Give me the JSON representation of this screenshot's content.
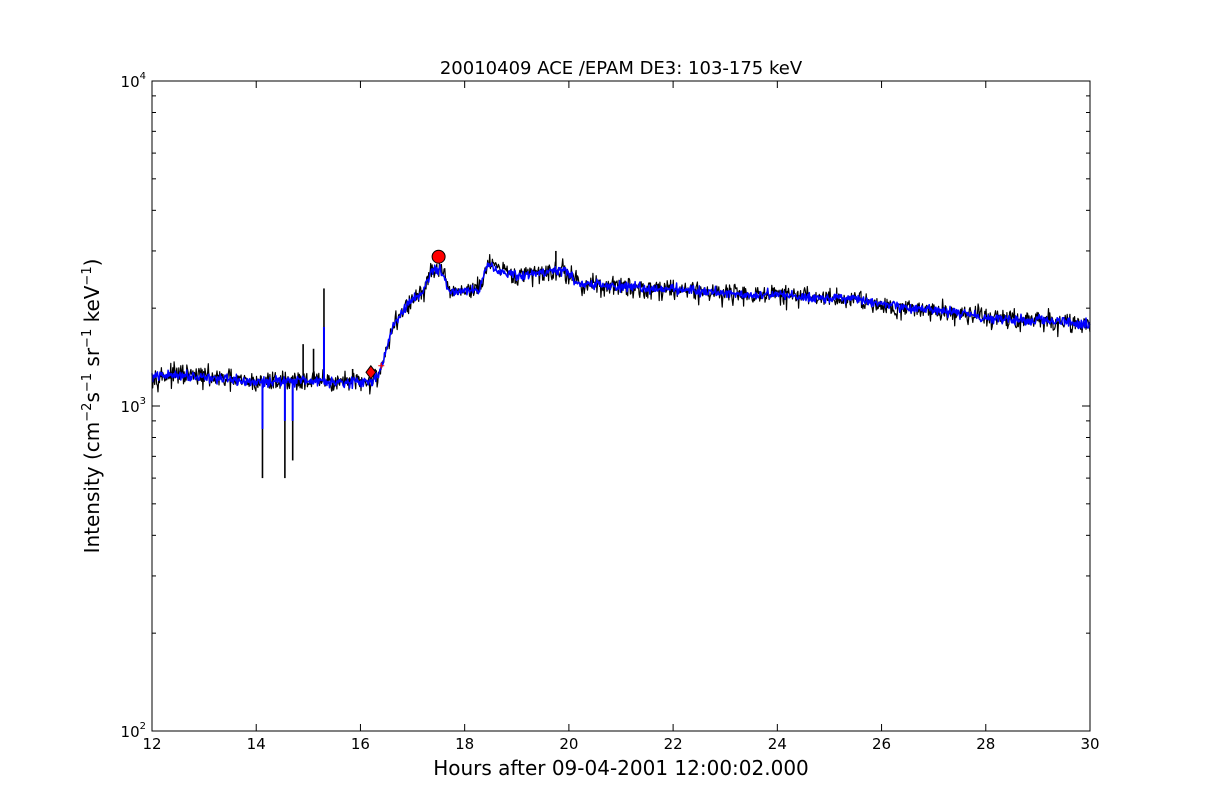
{
  "chart_data": {
    "type": "line",
    "title": "20010409 ACE /EPAM DE3: 103-175 keV",
    "xlabel": "Hours after 09-04-2001 12:00:02.000",
    "ylabel_parts": {
      "lead": "Intensity (cm",
      "exp1": "−2",
      "mid1": "s",
      "exp2": "−1",
      "mid2": " sr",
      "exp3": "−1",
      "mid3": " keV",
      "exp4": "−1",
      "tail": ")"
    },
    "xlim": [
      12,
      30
    ],
    "ylim": [
      100,
      10000
    ],
    "yscale": "log",
    "grid": false,
    "x_ticks": [
      12,
      14,
      16,
      18,
      20,
      22,
      24,
      26,
      28,
      30
    ],
    "y_ticks": [
      {
        "value": 100,
        "base": "10",
        "exp": "2"
      },
      {
        "value": 1000,
        "base": "10",
        "exp": "3"
      },
      {
        "value": 10000,
        "base": "10",
        "exp": "4"
      }
    ],
    "series": [
      {
        "color": "#000000",
        "noise": 0.045,
        "x": [
          12.0,
          12.5,
          13.0,
          13.5,
          14.0,
          14.5,
          15.0,
          15.5,
          16.0,
          16.2,
          16.35,
          16.5,
          16.65,
          16.8,
          17.0,
          17.2,
          17.4,
          17.55,
          17.7,
          18.0,
          18.3,
          18.45,
          18.7,
          19.0,
          19.3,
          19.6,
          19.9,
          20.2,
          20.6,
          21.0,
          21.5,
          22.0,
          22.5,
          23.0,
          23.5,
          24.0,
          24.5,
          25.0,
          25.5,
          26.0,
          26.5,
          27.0,
          27.5,
          28.0,
          28.5,
          29.0,
          29.5,
          30.0
        ],
        "y": [
          1230,
          1250,
          1230,
          1200,
          1180,
          1200,
          1200,
          1190,
          1180,
          1190,
          1250,
          1500,
          1780,
          1950,
          2120,
          2250,
          2650,
          2600,
          2250,
          2270,
          2300,
          2750,
          2600,
          2500,
          2550,
          2600,
          2620,
          2380,
          2350,
          2330,
          2300,
          2300,
          2260,
          2230,
          2200,
          2200,
          2170,
          2150,
          2130,
          2050,
          2000,
          1970,
          1930,
          1880,
          1850,
          1830,
          1810,
          1780
        ],
        "spikes": [
          {
            "x": 14.12,
            "y": 600
          },
          {
            "x": 14.55,
            "y": 600
          },
          {
            "x": 14.7,
            "y": 680
          },
          {
            "x": 14.9,
            "y": 1550
          },
          {
            "x": 15.1,
            "y": 1500
          },
          {
            "x": 15.3,
            "y": 2300
          },
          {
            "x": 15.85,
            "y": 1300
          },
          {
            "x": 19.75,
            "y": 3000
          }
        ]
      },
      {
        "color": "#0000ff",
        "noise": 0.022,
        "x": [
          12.0,
          12.5,
          13.0,
          13.5,
          14.0,
          14.5,
          15.0,
          15.5,
          16.0,
          16.2,
          16.35,
          16.5,
          16.65,
          16.8,
          17.0,
          17.2,
          17.4,
          17.55,
          17.7,
          18.0,
          18.3,
          18.45,
          18.7,
          19.0,
          19.3,
          19.6,
          19.9,
          20.2,
          20.6,
          21.0,
          21.5,
          22.0,
          22.5,
          23.0,
          23.5,
          24.0,
          24.5,
          25.0,
          25.5,
          26.0,
          26.5,
          27.0,
          27.5,
          28.0,
          28.5,
          29.0,
          29.5,
          30.0
        ],
        "y": [
          1230,
          1250,
          1230,
          1200,
          1180,
          1200,
          1200,
          1190,
          1180,
          1190,
          1250,
          1500,
          1780,
          1950,
          2120,
          2250,
          2650,
          2600,
          2250,
          2270,
          2300,
          2750,
          2600,
          2500,
          2550,
          2600,
          2620,
          2380,
          2350,
          2330,
          2300,
          2300,
          2260,
          2230,
          2200,
          2200,
          2170,
          2150,
          2130,
          2050,
          2000,
          1970,
          1930,
          1880,
          1850,
          1830,
          1810,
          1780
        ],
        "spikes": [
          {
            "x": 14.12,
            "y": 850
          },
          {
            "x": 14.55,
            "y": 900
          },
          {
            "x": 14.7,
            "y": 900
          },
          {
            "x": 15.3,
            "y": 1750
          }
        ]
      }
    ],
    "markers": [
      {
        "x": 16.2,
        "y": 1270,
        "shape": "diamond",
        "color": "#ff0000"
      },
      {
        "x": 17.5,
        "y": 2880,
        "shape": "circle",
        "color": "#ff0000"
      }
    ],
    "minor_markers": [
      {
        "x": 16.4,
        "y": 1330,
        "shape": "plus",
        "color": "#ff0000"
      }
    ]
  }
}
